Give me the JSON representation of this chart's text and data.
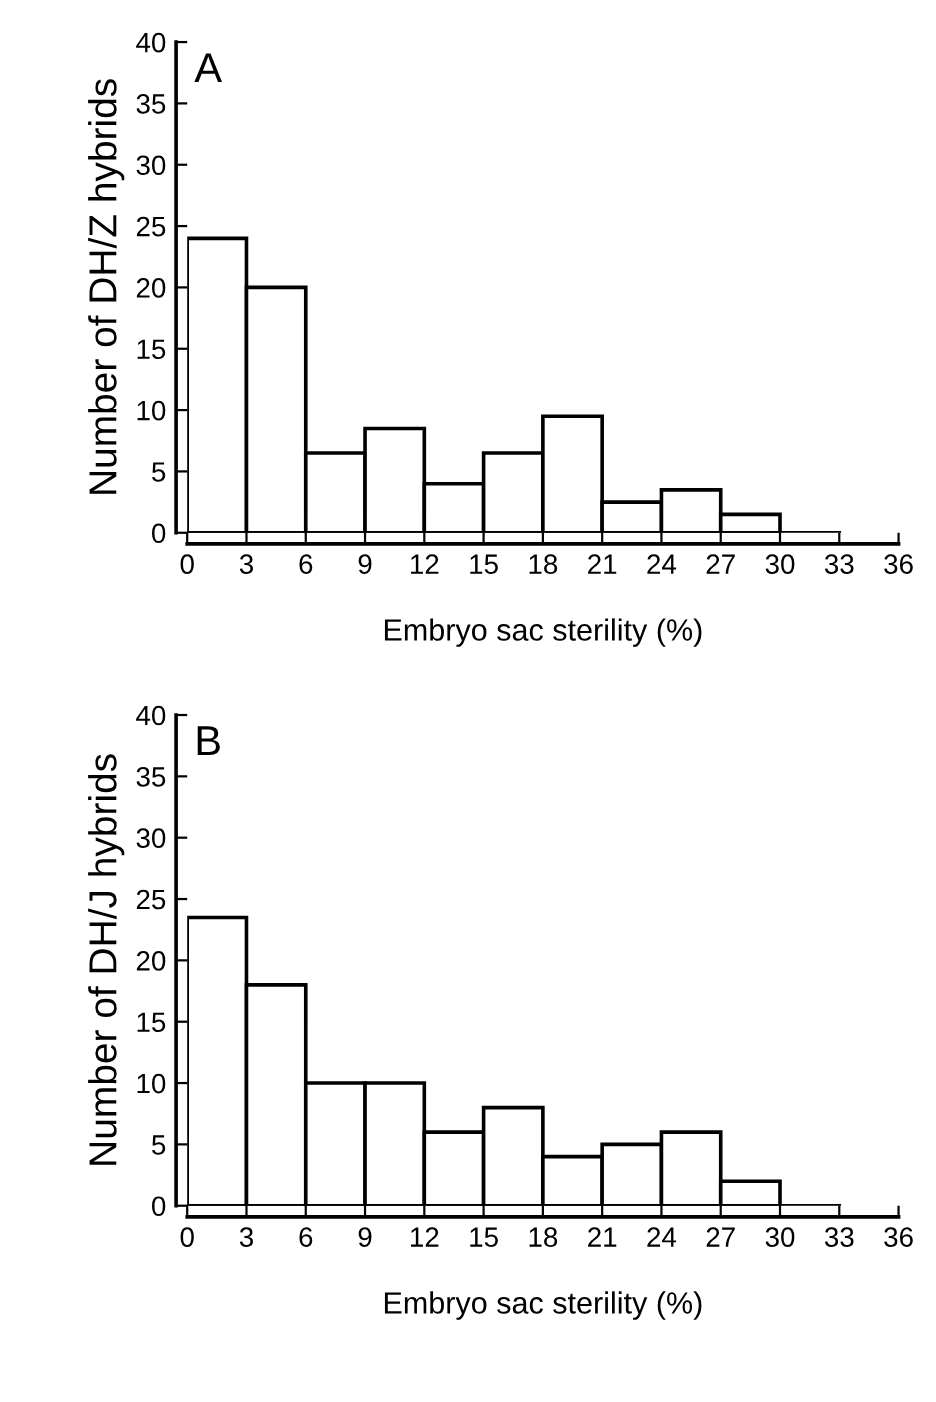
{
  "chart_data": [
    {
      "type": "histogram",
      "xlabel": "Embryo sac sterility (%)",
      "ylabel": "Number of DH/Z hybrids",
      "annotations": [
        "A"
      ],
      "bins": [
        0,
        3,
        6,
        9,
        12,
        15,
        18,
        21,
        24,
        27,
        30,
        33
      ],
      "values": [
        24,
        20,
        6.5,
        8.5,
        4,
        6.5,
        9.5,
        2.5,
        3.5,
        1.5,
        0
      ],
      "color": "#ffffff",
      "xlim": [
        0,
        36
      ],
      "xticks": [
        0,
        3,
        6,
        9,
        12,
        15,
        18,
        21,
        24,
        27,
        30,
        33,
        36
      ],
      "ylim": [
        0,
        40
      ],
      "yticks": [
        0,
        5,
        10,
        15,
        20,
        25,
        30,
        35,
        40
      ],
      "grid": false
    },
    {
      "type": "histogram",
      "xlabel": "Embryo sac sterility (%)",
      "ylabel": "Number of DH/J hybrids",
      "annotations": [
        "B"
      ],
      "bins": [
        0,
        3,
        6,
        9,
        12,
        15,
        18,
        21,
        24,
        27,
        30,
        33
      ],
      "values": [
        23.5,
        18,
        10,
        10,
        6,
        8,
        4,
        5,
        6,
        2,
        0
      ],
      "color": "#ffffff",
      "xlim": [
        0,
        36
      ],
      "xticks": [
        0,
        3,
        6,
        9,
        12,
        15,
        18,
        21,
        24,
        27,
        30,
        33,
        36
      ],
      "ylim": [
        0,
        40
      ],
      "yticks": [
        0,
        5,
        10,
        15,
        20,
        25,
        30,
        35,
        40
      ],
      "grid": false
    }
  ]
}
